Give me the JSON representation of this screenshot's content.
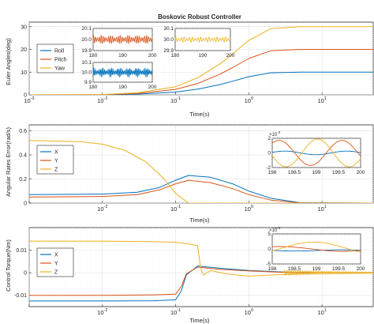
{
  "title": "Boskovic Robust Controller",
  "colors": {
    "Roll": "#0072BD",
    "Pitch": "#D95319",
    "Yaw": "#EDB120"
  },
  "chart_data": [
    {
      "type": "line",
      "id": "euler",
      "xscale": "log",
      "xlim": [
        0.001,
        50
      ],
      "ylim": [
        0,
        32
      ],
      "yticks": [
        0,
        10,
        20,
        30
      ],
      "xticks_shown": [
        "10^-3",
        "10^-2",
        "10^-1",
        "10^0",
        "10^1"
      ],
      "ylabel": "Euler Angles(deg)",
      "xlabel": "Time(s)",
      "grid": true,
      "legend": {
        "position": "left",
        "entries": [
          "Roll",
          "Pitch",
          "Yaw"
        ]
      },
      "series": [
        {
          "name": "Roll",
          "x": [
            0.001,
            0.01,
            0.03,
            0.1,
            0.2,
            0.4,
            0.6,
            1,
            2,
            5,
            10,
            50
          ],
          "y": [
            0,
            0.05,
            0.3,
            1.2,
            2.5,
            4.5,
            6,
            8,
            9.7,
            10,
            10,
            10
          ]
        },
        {
          "name": "Pitch",
          "x": [
            0.001,
            0.01,
            0.03,
            0.1,
            0.2,
            0.4,
            0.6,
            1,
            2,
            5,
            10,
            50
          ],
          "y": [
            0,
            0.1,
            0.6,
            2.4,
            5,
            9,
            12,
            16,
            19.4,
            20,
            20,
            20
          ]
        },
        {
          "name": "Yaw",
          "x": [
            0.001,
            0.01,
            0.03,
            0.1,
            0.2,
            0.4,
            0.6,
            1,
            2,
            5,
            10,
            50
          ],
          "y": [
            0,
            0.15,
            0.9,
            3.6,
            7.5,
            13.5,
            18,
            24,
            29.1,
            30,
            30,
            30
          ]
        }
      ],
      "insets": [
        {
          "series": "Pitch",
          "xlim": [
            180,
            200
          ],
          "xticks": [
            180,
            190,
            200
          ],
          "ylim": [
            19.9,
            20.1
          ],
          "yticks": [
            "19.9",
            "20.0",
            "20.1"
          ],
          "center": 20.0,
          "amp": 0.04
        },
        {
          "series": "Yaw",
          "xlim": [
            180,
            200
          ],
          "xticks": [
            180,
            190,
            200
          ],
          "ylim": [
            29.9,
            30.1
          ],
          "yticks": [
            "29.9",
            "30.0",
            "30.1"
          ],
          "center": 30.0,
          "amp": 0.025
        },
        {
          "series": "Roll",
          "xlim": [
            180,
            200
          ],
          "xticks": [
            180,
            190,
            200
          ],
          "ylim": [
            9.9,
            10.1
          ],
          "yticks": [
            "9.9",
            "10.0",
            "10.1"
          ],
          "center": 10.0,
          "amp": 0.05
        }
      ]
    },
    {
      "type": "line",
      "id": "rates",
      "xscale": "log",
      "xlim": [
        0.001,
        50
      ],
      "ylim": [
        0,
        0.65
      ],
      "yticks": [
        0,
        0.2,
        0.4,
        0.6
      ],
      "xticks_shown": [
        "10^-2",
        "10^-1",
        "10^0",
        "10^1"
      ],
      "ylabel": "Angular Rates Error(rad/s)",
      "xlabel": "Time(s)",
      "grid": true,
      "legend": {
        "position": "left",
        "entries": [
          "X",
          "Y",
          "Z"
        ]
      },
      "series": [
        {
          "name": "X",
          "x": [
            0.001,
            0.01,
            0.03,
            0.06,
            0.1,
            0.15,
            0.3,
            0.6,
            1,
            2,
            5,
            50
          ],
          "y": [
            0.07,
            0.075,
            0.09,
            0.13,
            0.19,
            0.23,
            0.215,
            0.16,
            0.1,
            0.04,
            0.003,
            0
          ]
        },
        {
          "name": "Y",
          "x": [
            0.001,
            0.01,
            0.03,
            0.06,
            0.1,
            0.15,
            0.3,
            0.6,
            1,
            2,
            5,
            50
          ],
          "y": [
            0.05,
            0.055,
            0.07,
            0.11,
            0.16,
            0.19,
            0.17,
            0.12,
            0.07,
            0.025,
            0.002,
            0
          ]
        },
        {
          "name": "Z",
          "x": [
            0.001,
            0.005,
            0.01,
            0.02,
            0.04,
            0.07,
            0.1,
            0.15,
            0.3,
            0.6,
            1,
            50
          ],
          "y": [
            0.52,
            0.51,
            0.49,
            0.44,
            0.34,
            0.2,
            0.08,
            0,
            0,
            0,
            0,
            0
          ]
        }
      ],
      "inset": {
        "xlim": [
          198,
          200
        ],
        "xticks": [
          "198",
          "198.5",
          "199",
          "199.5",
          "200"
        ],
        "ylim": [
          -2,
          2
        ],
        "yticks": [
          "-2",
          "0",
          "2"
        ],
        "exponent": "×10^-3"
      }
    },
    {
      "type": "line",
      "id": "torque",
      "xscale": "log",
      "xlim": [
        0.001,
        50
      ],
      "ylim": [
        -0.015,
        0.02
      ],
      "yticks": [
        -0.01,
        0,
        0.01
      ],
      "xticks_shown": [
        "10^-2",
        "10^-1",
        "10^0",
        "10^1"
      ],
      "ylabel": "Control Torque(Nm)",
      "xlabel": "Time(s)",
      "grid": true,
      "legend": {
        "position": "left",
        "entries": [
          "X",
          "Y",
          "Z"
        ]
      },
      "series": [
        {
          "name": "X",
          "x": [
            0.001,
            0.01,
            0.05,
            0.1,
            0.12,
            0.14,
            0.2,
            0.4,
            1,
            3,
            10,
            50
          ],
          "y": [
            -0.0125,
            -0.0125,
            -0.0124,
            -0.012,
            -0.008,
            -0.001,
            0.003,
            0.002,
            0.001,
            0.0003,
            0,
            0
          ]
        },
        {
          "name": "Y",
          "x": [
            0.001,
            0.01,
            0.05,
            0.1,
            0.12,
            0.14,
            0.2,
            0.4,
            1,
            3,
            10,
            50
          ],
          "y": [
            -0.01,
            -0.01,
            -0.0098,
            -0.0095,
            -0.006,
            -0.0005,
            0.0025,
            0.0015,
            0.0008,
            0.0002,
            0,
            0
          ]
        },
        {
          "name": "Z",
          "x": [
            0.001,
            0.01,
            0.05,
            0.1,
            0.15,
            0.2,
            0.22,
            0.24,
            0.3,
            0.5,
            1,
            2,
            5,
            10,
            50
          ],
          "y": [
            0.014,
            0.014,
            0.0138,
            0.0135,
            0.0128,
            0.012,
            0.002,
            -0.001,
            0.001,
            -0.0005,
            -0.0015,
            -0.001,
            -0.0005,
            0,
            0
          ]
        }
      ],
      "inset": {
        "xlim": [
          198,
          200
        ],
        "xticks": [
          "198",
          "198.5",
          "199",
          "199.5",
          "200"
        ],
        "ylim": [
          -5,
          5
        ],
        "yticks": [
          "-5",
          "0",
          "5"
        ],
        "exponent": "×10^-3"
      }
    }
  ],
  "labels": {
    "title_text": "Boskovic Robust Controller",
    "p1_ylabel": "Euler Angles(deg)",
    "p2_ylabel": "Angular Rates Error(rad/s)",
    "p3_ylabel": "Control Torque(Nm)",
    "xlabel": "Time(s)",
    "leg1": [
      "Roll",
      "Pitch",
      "Yaw"
    ],
    "leg2": [
      "X",
      "Y",
      "Z"
    ],
    "leg3": [
      "X",
      "Y",
      "Z"
    ],
    "exp": "×10",
    "exp_power": "-3"
  }
}
